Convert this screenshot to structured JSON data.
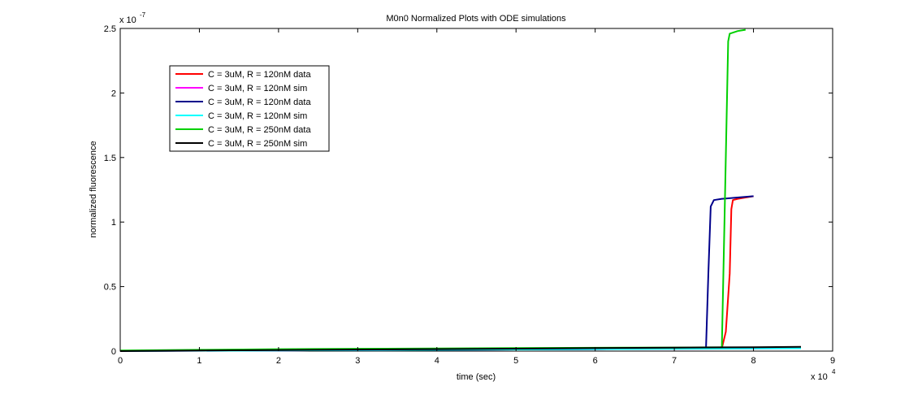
{
  "chart_data": {
    "type": "line",
    "title": "M0n0 Normalized Plots with ODE simulations",
    "xlabel": "time (sec)",
    "ylabel": "normalized fluorescence",
    "x_multiplier_text": "x 10",
    "x_multiplier_exp": "4",
    "y_multiplier_text": "x 10",
    "y_multiplier_exp": "-7",
    "xlim": [
      0,
      9
    ],
    "ylim": [
      0,
      2.5
    ],
    "x_ticks": [
      "0",
      "1",
      "2",
      "3",
      "4",
      "5",
      "6",
      "7",
      "8",
      "9"
    ],
    "y_ticks": [
      "0",
      "0.5",
      "1",
      "1.5",
      "2",
      "2.5"
    ],
    "grid": false,
    "legend_position": "top-left",
    "series": [
      {
        "name": "C = 3uM, R = 120nM data",
        "color": "#ff0000",
        "x": [
          0,
          2,
          4,
          6,
          7,
          7.6,
          7.65,
          7.7,
          7.72,
          7.74,
          7.8,
          7.9,
          8.0
        ],
        "y": [
          0.002,
          0.005,
          0.01,
          0.015,
          0.02,
          0.022,
          0.15,
          0.6,
          1.1,
          1.17,
          1.18,
          1.19,
          1.2
        ]
      },
      {
        "name": "C = 3uM, R = 120nM sim",
        "color": "#ff00ff",
        "x": [
          0,
          2,
          4,
          6,
          8,
          8.6
        ],
        "y": [
          0.0,
          0.005,
          0.01,
          0.015,
          0.02,
          0.022
        ]
      },
      {
        "name": "C = 3uM, R = 120nM data",
        "color": "#00008b",
        "x": [
          0,
          2,
          4,
          6,
          7,
          7.4,
          7.43,
          7.46,
          7.5,
          7.6,
          7.8,
          8.0
        ],
        "y": [
          0.002,
          0.005,
          0.01,
          0.015,
          0.02,
          0.022,
          0.6,
          1.12,
          1.17,
          1.18,
          1.19,
          1.2
        ]
      },
      {
        "name": "C = 3uM, R = 120nM sim",
        "color": "#00ffff",
        "x": [
          0,
          2,
          4,
          6,
          8,
          8.6
        ],
        "y": [
          0.0,
          0.005,
          0.01,
          0.015,
          0.02,
          0.022
        ]
      },
      {
        "name": "C = 3uM, R = 250nM data",
        "color": "#00d000",
        "x": [
          0,
          1,
          2,
          3,
          4,
          5,
          6,
          7,
          7.6,
          7.64,
          7.68,
          7.7,
          7.8,
          7.9
        ],
        "y": [
          0.005,
          0.01,
          0.015,
          0.018,
          0.02,
          0.023,
          0.026,
          0.028,
          0.03,
          1.2,
          2.4,
          2.46,
          2.48,
          2.49
        ]
      },
      {
        "name": "C = 3uM, R = 250nM sim",
        "color": "#000000",
        "x": [
          0,
          2,
          4,
          6,
          8,
          8.6
        ],
        "y": [
          0.0,
          0.008,
          0.015,
          0.023,
          0.03,
          0.033
        ]
      }
    ]
  }
}
